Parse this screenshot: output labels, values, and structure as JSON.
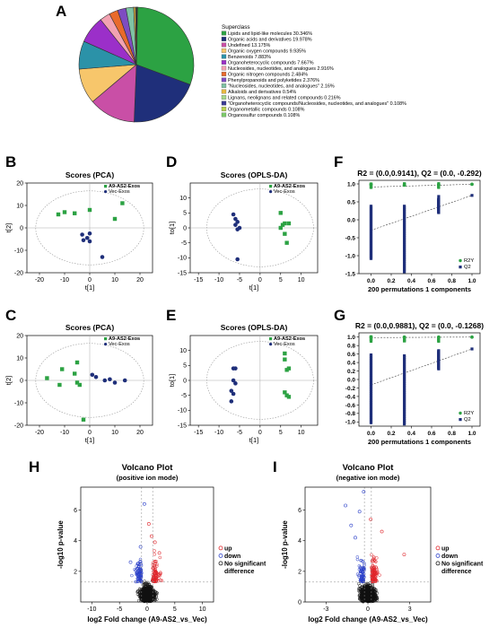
{
  "panel_letters": [
    "A",
    "B",
    "C",
    "D",
    "E",
    "F",
    "G",
    "H",
    "I"
  ],
  "chart_data": [
    {
      "panel": "A",
      "type": "pie",
      "legend_title": "Superclass",
      "slices": [
        {
          "label": "Lipids and lipid-like molecules 30.346%",
          "value": 30.346,
          "color": "#2ca243"
        },
        {
          "label": "Organic acids and derivatives 19.978%",
          "value": 19.978,
          "color": "#1f2f7a"
        },
        {
          "label": "Undefined 13.175%",
          "value": 13.175,
          "color": "#c94fa6"
        },
        {
          "label": "Organic oxygen compounds 9.935%",
          "value": 9.935,
          "color": "#f7c66b"
        },
        {
          "label": "Benzenoids 7.883%",
          "value": 7.883,
          "color": "#2b92a8"
        },
        {
          "label": "Organoheterocyclic compounds 7.667%",
          "value": 7.667,
          "color": "#9b2fc9"
        },
        {
          "label": "Nucleosides, nucleotides, and analogues 2.916%",
          "value": 2.916,
          "color": "#f2a2b2"
        },
        {
          "label": "Organic nitrogen compounds 2.484%",
          "value": 2.484,
          "color": "#e96a2b"
        },
        {
          "label": "Phenylpropanoids and polyketides 2.376%",
          "value": 2.376,
          "color": "#7e4cc1"
        },
        {
          "label": "\"Nucleosides, nucleotides, and analogues\" 2.16%",
          "value": 2.16,
          "color": "#7fc3a4"
        },
        {
          "label": "Alkaloids and derivatives 0.54%",
          "value": 0.54,
          "color": "#e8b840"
        },
        {
          "label": "Lignans, neolignans and related compounds 0.216%",
          "value": 0.216,
          "color": "#a7d88b"
        },
        {
          "label": "\"Organoheterocyclic compounds/Nucleosides, nucleotides, and analogues\" 0.108%",
          "value": 0.108,
          "color": "#3b3b95"
        },
        {
          "label": "Organometallic compounds 0.108%",
          "value": 0.108,
          "color": "#b9d24f"
        },
        {
          "label": "Organosulfur compounds 0.108%",
          "value": 0.108,
          "color": "#7cc96a"
        }
      ]
    },
    {
      "panel": "B",
      "type": "scatter",
      "title": "Scores (PCA)",
      "xlabel": "t[1]",
      "ylabel": "t[2]",
      "xlim": [
        -25,
        25
      ],
      "ylim": [
        -20,
        20
      ],
      "xticks": [
        -20,
        -10,
        0,
        10,
        20
      ],
      "yticks": [
        -20,
        -10,
        0,
        10,
        20
      ],
      "ellipse": {
        "cx": 0,
        "cy": 0,
        "rx": 21.5,
        "ry": 16.5
      },
      "series": [
        {
          "name": "A9-AS2-Exos",
          "color": "#2ca243",
          "marker": "square",
          "points": [
            [
              -12.5,
              6
            ],
            [
              -10,
              7
            ],
            [
              -6,
              6.5
            ],
            [
              0,
              8
            ],
            [
              10,
              4
            ],
            [
              13,
              11
            ]
          ]
        },
        {
          "name": "Vec-Exos",
          "color": "#1f2f7a",
          "marker": "circle",
          "points": [
            [
              -3,
              -3
            ],
            [
              -1,
              -4.5
            ],
            [
              0,
              -6
            ],
            [
              0,
              -2.5
            ],
            [
              -2.5,
              -5.5
            ],
            [
              5,
              -13
            ]
          ]
        }
      ]
    },
    {
      "panel": "C",
      "type": "scatter",
      "title": "Scores (PCA)",
      "xlabel": "t[1]",
      "ylabel": "t[2]",
      "xlim": [
        -25,
        25
      ],
      "ylim": [
        -20,
        20
      ],
      "xticks": [
        -20,
        -10,
        0,
        10,
        20
      ],
      "yticks": [
        -20,
        -10,
        0,
        10,
        20
      ],
      "ellipse": {
        "cx": 0,
        "cy": 0,
        "rx": 21.5,
        "ry": 16.5
      },
      "series": [
        {
          "name": "A9-AS2-Exos",
          "color": "#2ca243",
          "marker": "square",
          "points": [
            [
              -17,
              1
            ],
            [
              -12,
              -2
            ],
            [
              -11,
              5
            ],
            [
              -6,
              3
            ],
            [
              -5,
              -1
            ],
            [
              -5,
              8
            ],
            [
              -4,
              -2
            ],
            [
              -2.5,
              -17.5
            ]
          ]
        },
        {
          "name": "Vec-Exos",
          "color": "#1f2f7a",
          "marker": "circle",
          "points": [
            [
              1,
              2.5
            ],
            [
              2.5,
              1.5
            ],
            [
              6,
              0
            ],
            [
              8,
              0.5
            ],
            [
              10,
              -1
            ],
            [
              14,
              0
            ]
          ]
        }
      ]
    },
    {
      "panel": "D",
      "type": "scatter",
      "title": "Scores (OPLS-DA)",
      "xlabel": "t[1]",
      "ylabel": "to[1]",
      "xlim": [
        -17,
        14
      ],
      "ylim": [
        -15,
        15
      ],
      "xticks": [
        -15,
        -10,
        -5,
        0,
        5,
        10
      ],
      "yticks": [
        -15,
        -10,
        -5,
        0,
        5,
        10
      ],
      "ellipse": {
        "cx": 0,
        "cy": 0,
        "rx": 13,
        "ry": 13
      },
      "series": [
        {
          "name": "A9-AS2-Exos",
          "color": "#2ca243",
          "marker": "square",
          "points": [
            [
              5,
              5
            ],
            [
              5.5,
              1
            ],
            [
              6,
              1.5
            ],
            [
              7,
              1.5
            ],
            [
              5,
              0
            ],
            [
              6,
              -2
            ],
            [
              6.5,
              -5
            ]
          ]
        },
        {
          "name": "Vec-Exos",
          "color": "#1f2f7a",
          "marker": "circle",
          "points": [
            [
              -6.5,
              4.5
            ],
            [
              -6,
              3
            ],
            [
              -5.5,
              2
            ],
            [
              -6,
              1
            ],
            [
              -5,
              0
            ],
            [
              -5.5,
              -0.5
            ],
            [
              -5.5,
              -10.5
            ]
          ]
        }
      ]
    },
    {
      "panel": "E",
      "type": "scatter",
      "title": "Scores (OPLS-DA)",
      "xlabel": "t[1]",
      "ylabel": "to[1]",
      "xlim": [
        -17,
        14
      ],
      "ylim": [
        -15,
        15
      ],
      "xticks": [
        -15,
        -10,
        -5,
        0,
        5,
        10
      ],
      "yticks": [
        -15,
        -10,
        -5,
        0,
        5,
        10
      ],
      "ellipse": {
        "cx": 0,
        "cy": 0,
        "rx": 13,
        "ry": 13
      },
      "series": [
        {
          "name": "A9-AS2-Exos",
          "color": "#2ca243",
          "marker": "square",
          "points": [
            [
              6,
              9
            ],
            [
              6,
              7
            ],
            [
              7,
              4
            ],
            [
              6.5,
              3.5
            ],
            [
              6,
              -4
            ],
            [
              6.5,
              -5
            ],
            [
              7,
              -5.5
            ]
          ]
        },
        {
          "name": "Vec-Exos",
          "color": "#1f2f7a",
          "marker": "circle",
          "points": [
            [
              -6.5,
              4
            ],
            [
              -6,
              4
            ],
            [
              -6.5,
              0
            ],
            [
              -6,
              -1
            ],
            [
              -7,
              -3.5
            ],
            [
              -6.5,
              -4.5
            ],
            [
              -7,
              -7
            ]
          ]
        }
      ]
    },
    {
      "panel": "F",
      "type": "scatter",
      "title": "R2 = (0.0,0.9141), Q2 = (0.0, -0.292)",
      "xlabel": "200 permutations 1 components",
      "xlim": [
        -0.12,
        1.08
      ],
      "ylim": [
        -1.5,
        1.1
      ],
      "xticks": [
        0.0,
        0.2,
        0.4,
        0.6,
        0.8,
        1.0
      ],
      "yticks": [
        -1.5,
        -1.0,
        -0.5,
        0.0,
        0.5,
        1.0
      ],
      "legend": [
        "R2Y",
        "Q2"
      ],
      "r2y_line": {
        "intercept": 0.9141,
        "end": 0.99
      },
      "q2_line": {
        "intercept": -0.292,
        "end": 0.68
      },
      "q2_columns": [
        {
          "x": 0.0,
          "min": -1.08,
          "max": 0.38
        },
        {
          "x": 0.33,
          "min": -1.4,
          "max": 0.38
        },
        {
          "x": 0.67,
          "min": 0.2,
          "max": 0.58
        }
      ],
      "r2y_points": [
        [
          0.0,
          0.98
        ],
        [
          0.33,
          0.97
        ],
        [
          0.67,
          0.98
        ],
        [
          1.0,
          0.99
        ]
      ],
      "q2_outliers": [
        [
          0.33,
          -1.45
        ],
        [
          0.67,
          0.65
        ],
        [
          1.0,
          0.68
        ]
      ]
    },
    {
      "panel": "G",
      "type": "scatter",
      "title": "R2 = (0.0,0.9881), Q2 = (0.0, -0.1268)",
      "xlabel": "200 permutations 1 components",
      "xlim": [
        -0.12,
        1.08
      ],
      "ylim": [
        -1.1,
        1.1
      ],
      "xticks": [
        0.0,
        0.2,
        0.4,
        0.6,
        0.8,
        1.0
      ],
      "yticks": [
        -1.0,
        -0.8,
        -0.6,
        -0.4,
        -0.2,
        0.0,
        0.2,
        0.4,
        0.6,
        0.8,
        1.0
      ],
      "legend": [
        "R2Y",
        "Q2"
      ],
      "r2y_line": {
        "intercept": 0.9881,
        "end": 1.0
      },
      "q2_line": {
        "intercept": -0.1268,
        "end": 0.72
      },
      "q2_columns": [
        {
          "x": 0.0,
          "min": -1.02,
          "max": 0.58
        },
        {
          "x": 0.33,
          "min": -1.05,
          "max": 0.56
        },
        {
          "x": 0.67,
          "min": 0.25,
          "max": 0.68
        }
      ],
      "r2y_points": [
        [
          0.0,
          1.0
        ],
        [
          0.33,
          1.0
        ],
        [
          0.67,
          1.0
        ],
        [
          1.0,
          1.0
        ]
      ],
      "q2_outliers": [
        [
          1.0,
          0.72
        ]
      ]
    },
    {
      "panel": "H",
      "type": "scatter",
      "title": "Volcano Plot",
      "subtitle": "(positive ion mode)",
      "xlabel": "log2 Fold change (A9-AS2_vs_Vec)",
      "ylabel": "-log10 p-value",
      "xlim": [
        -12,
        12
      ],
      "ylim": [
        0,
        7.5
      ],
      "xticks": [
        -10,
        -5,
        0,
        5,
        10
      ],
      "yticks": [
        2,
        4,
        6
      ],
      "threshold_y": 1.3,
      "vlines": [
        -1,
        1
      ],
      "legend": [
        "up",
        "down",
        "No significant",
        "difference"
      ],
      "legend_colors": [
        "#e0242a",
        "#2a3fc9",
        "#111111"
      ],
      "notable_points": [
        [
          -0.5,
          6.4
        ],
        [
          0.3,
          5.1
        ],
        [
          0.8,
          4.3
        ],
        [
          -1.2,
          3.6
        ],
        [
          1.4,
          3.9
        ],
        [
          -3,
          2.6
        ],
        [
          2.2,
          3.2
        ]
      ]
    },
    {
      "panel": "I",
      "type": "scatter",
      "title": "Volcano Plot",
      "subtitle": "(negative ion mode)",
      "xlabel": "log2 Fold change (A9-AS2_vs_Vec)",
      "ylabel": "-log10 p-value",
      "xlim": [
        -4.5,
        4.5
      ],
      "ylim": [
        0,
        7.5
      ],
      "xticks": [
        -3,
        0,
        3
      ],
      "yticks": [
        0,
        2,
        4,
        6
      ],
      "threshold_y": 1.3,
      "vlines": [
        -0.25,
        0.25
      ],
      "legend": [
        "up",
        "down",
        "No significant",
        "difference"
      ],
      "legend_colors": [
        "#e0242a",
        "#2a3fc9",
        "#111111"
      ],
      "notable_points": [
        [
          -0.3,
          7.2
        ],
        [
          -1.6,
          6.3
        ],
        [
          -0.6,
          5.9
        ],
        [
          0.2,
          5.4
        ],
        [
          -1.2,
          5.0
        ],
        [
          1.0,
          4.6
        ],
        [
          -0.9,
          4.2
        ],
        [
          2.6,
          3.1
        ]
      ]
    }
  ]
}
